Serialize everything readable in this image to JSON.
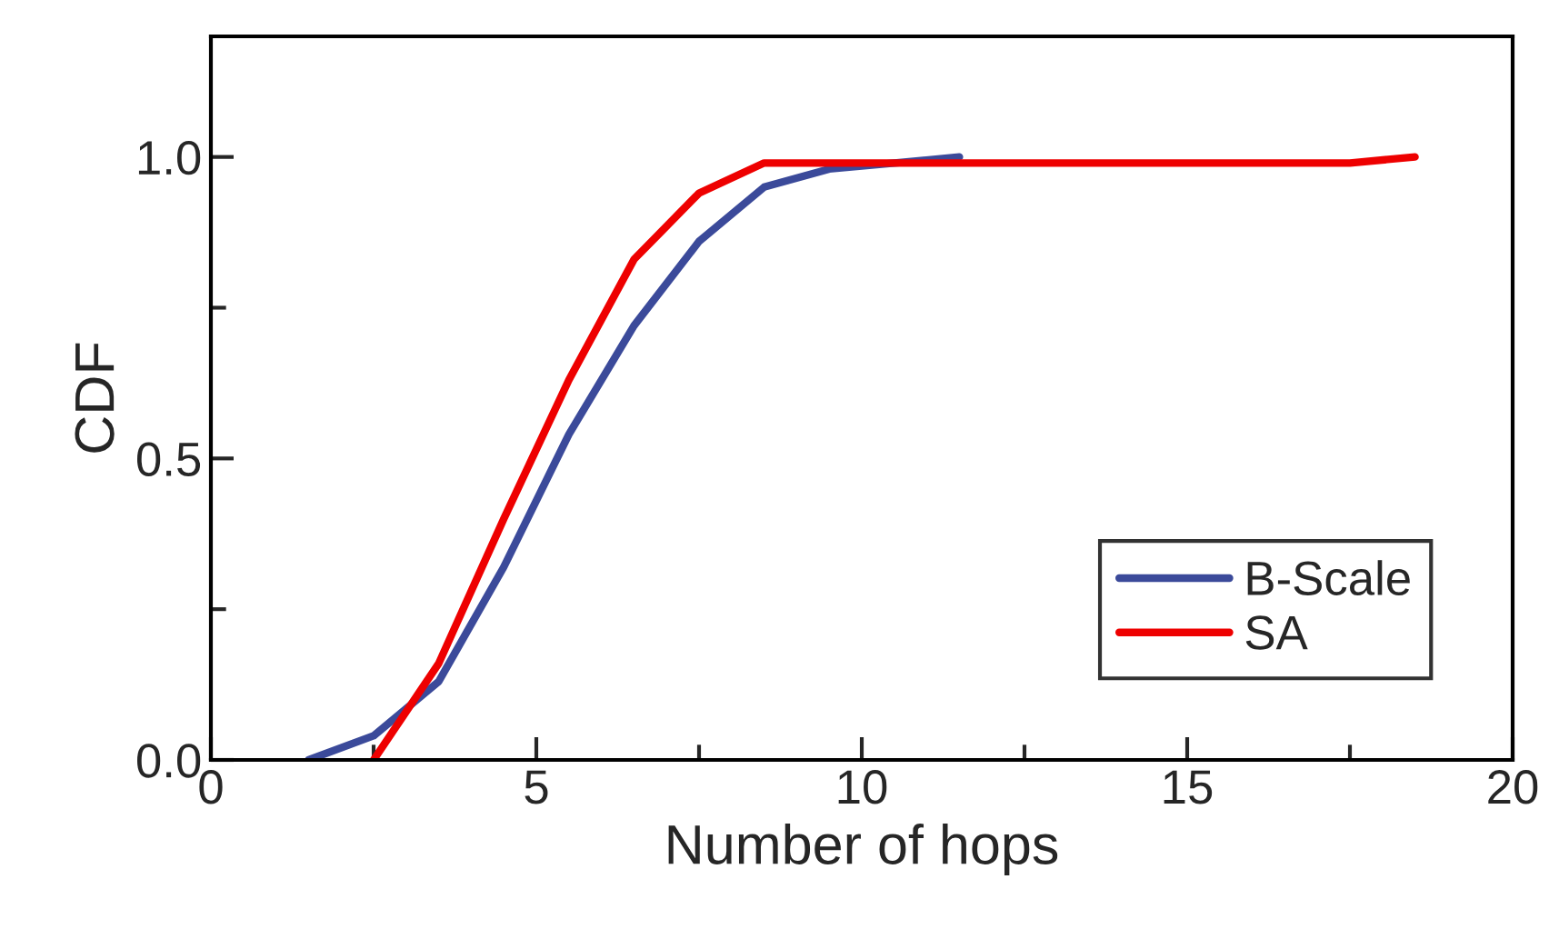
{
  "chart_data": {
    "type": "line",
    "xlabel": "Number of hops",
    "ylabel": "CDF",
    "xlim": [
      0,
      20
    ],
    "xticks": [
      0,
      5,
      10,
      15,
      20
    ],
    "ylim": [
      0,
      1.2
    ],
    "yticks": [
      {
        "value": 0,
        "label": "0.0"
      },
      {
        "value": 0.5,
        "label": "0.5"
      },
      {
        "value": 1.0,
        "label": "1.0"
      }
    ],
    "series": [
      {
        "name": "B-Scale",
        "color": "#3b4a9a",
        "x": [
          1.5,
          2.5,
          3.5,
          4.5,
          5.5,
          6.5,
          7.5,
          8.5,
          9.5,
          10.5,
          11.5
        ],
        "values": [
          0,
          0.04,
          0.13,
          0.32,
          0.54,
          0.72,
          0.86,
          0.95,
          0.98,
          0.99,
          1.0
        ]
      },
      {
        "name": "SA",
        "color": "#ee0000",
        "x": [
          2.5,
          3.5,
          4.5,
          5.5,
          6.5,
          7.5,
          8.5,
          9.5,
          10.5,
          11.5,
          12.5,
          13.5,
          14.5,
          15.5,
          16.5,
          17.5,
          18.5
        ],
        "values": [
          0,
          0.16,
          0.4,
          0.63,
          0.83,
          0.94,
          0.99,
          0.99,
          0.99,
          0.99,
          0.99,
          0.99,
          0.99,
          0.99,
          0.99,
          0.99,
          1.0
        ]
      }
    ],
    "legend": "bottom right",
    "grid": false,
    "marker": "none",
    "line_style": "solid"
  }
}
